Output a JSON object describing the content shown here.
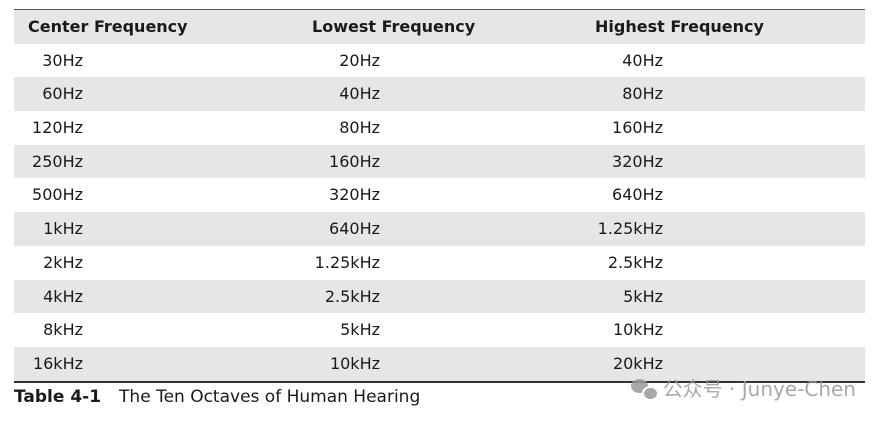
{
  "table": {
    "headers": [
      "Center Frequency",
      "Lowest Frequency",
      "Highest Frequency"
    ],
    "rows": [
      [
        "30Hz",
        "20Hz",
        "40Hz"
      ],
      [
        "60Hz",
        "40Hz",
        "80Hz"
      ],
      [
        "120Hz",
        "80Hz",
        "160Hz"
      ],
      [
        "250Hz",
        "160Hz",
        "320Hz"
      ],
      [
        "500Hz",
        "320Hz",
        "640Hz"
      ],
      [
        "1kHz",
        "640Hz",
        "1.25kHz"
      ],
      [
        "2kHz",
        "1.25kHz",
        "2.5kHz"
      ],
      [
        "4kHz",
        "2.5kHz",
        "5kHz"
      ],
      [
        "8kHz",
        "5kHz",
        "10kHz"
      ],
      [
        "16kHz",
        "10kHz",
        "20kHz"
      ]
    ]
  },
  "caption": {
    "label": "Table 4-1",
    "text": "The Ten Octaves of Human Hearing"
  },
  "watermark": {
    "icon": "wechat-icon",
    "text": "公众号 · Junye-Chen"
  }
}
